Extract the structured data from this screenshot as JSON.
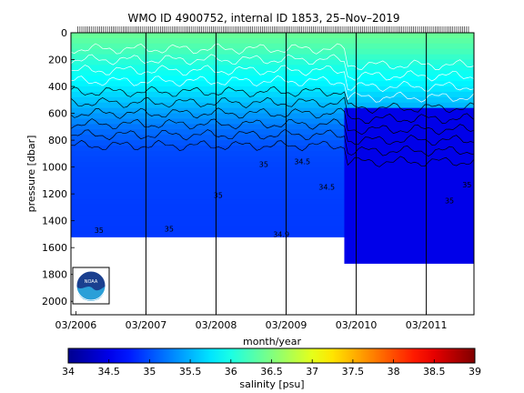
{
  "chart_data": {
    "type": "heatmap",
    "title": "WMO ID 4900752, internal ID 1853, 25–Nov–2019",
    "xlabel": "month/year",
    "ylabel": "pressure [dbar]",
    "x_ticks": [
      "03/2006",
      "03/2007",
      "03/2008",
      "03/2009",
      "03/2010",
      "03/2011"
    ],
    "x_tick_years": [
      2006.17,
      2007.17,
      2008.17,
      2009.17,
      2010.17,
      2011.17
    ],
    "xlim": [
      2006.1,
      2011.85
    ],
    "y_ticks": [
      0,
      200,
      400,
      600,
      800,
      1000,
      1200,
      1400,
      1600,
      1800,
      2000
    ],
    "ylim": [
      2100,
      0
    ],
    "year_divider_years": [
      2007.17,
      2008.17,
      2009.17,
      2010.17,
      2011.17
    ],
    "colorbar": {
      "label": "salinity [psu]",
      "range": [
        34,
        39
      ],
      "ticks": [
        34,
        34.5,
        35,
        35.5,
        36,
        36.5,
        37,
        37.5,
        38,
        38.5,
        39
      ]
    },
    "salinity_profile": [
      {
        "pressure": 0,
        "salinity": 36.4
      },
      {
        "pressure": 150,
        "salinity": 36.2
      },
      {
        "pressure": 250,
        "salinity": 36.0
      },
      {
        "pressure": 400,
        "salinity": 35.8
      },
      {
        "pressure": 550,
        "salinity": 35.5
      },
      {
        "pressure": 700,
        "salinity": 35.2
      },
      {
        "pressure": 850,
        "salinity": 35.0
      },
      {
        "pressure": 1000,
        "salinity": 34.95
      },
      {
        "pressure": 1500,
        "salinity": 34.9
      }
    ],
    "contour_labels": [
      {
        "text": "35",
        "year": 2008.85,
        "pressure": 1000
      },
      {
        "text": "34.5",
        "year": 2009.4,
        "pressure": 980
      },
      {
        "text": "34.5",
        "year": 2009.75,
        "pressure": 1170
      },
      {
        "text": "35",
        "year": 2008.2,
        "pressure": 1230
      },
      {
        "text": "35",
        "year": 2007.5,
        "pressure": 1480
      },
      {
        "text": "34.9",
        "year": 2009.1,
        "pressure": 1520
      },
      {
        "text": "35",
        "year": 2011.5,
        "pressure": 1270
      },
      {
        "text": "35",
        "year": 2011.75,
        "pressure": 1150
      },
      {
        "text": "35",
        "year": 2006.5,
        "pressure": 1490
      }
    ],
    "logo": "NOAA"
  }
}
